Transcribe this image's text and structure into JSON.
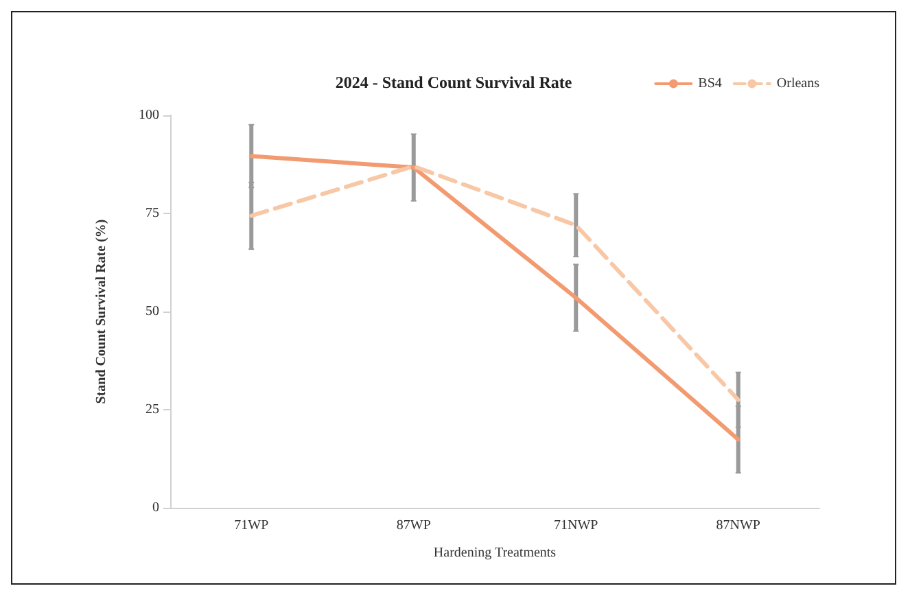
{
  "chart_data": {
    "type": "line",
    "title": "2024 - Stand Count Survival Rate",
    "xlabel": "Hardening Treatments",
    "ylabel": "Stand Count Survival Rate (%)",
    "categories": [
      "71WP",
      "87WP",
      "71NWP",
      "87NWP"
    ],
    "series": [
      {
        "name": "BS4",
        "color": "#f29a70",
        "line_style": "solid",
        "values": [
          89.6,
          86.7,
          53.5,
          17.4
        ],
        "errors": [
          8,
          8.5,
          8.5,
          8.5
        ]
      },
      {
        "name": "Orleans",
        "color": "#f7c7a6",
        "line_style": "dashed",
        "values": [
          74.4,
          87,
          72,
          27.5
        ],
        "errors": [
          8.5,
          null,
          8,
          7
        ]
      }
    ],
    "ylim": [
      0,
      100
    ],
    "yticks": [
      0,
      25,
      50,
      75,
      100
    ],
    "grid": false,
    "legend": "top right",
    "marker": "none"
  }
}
